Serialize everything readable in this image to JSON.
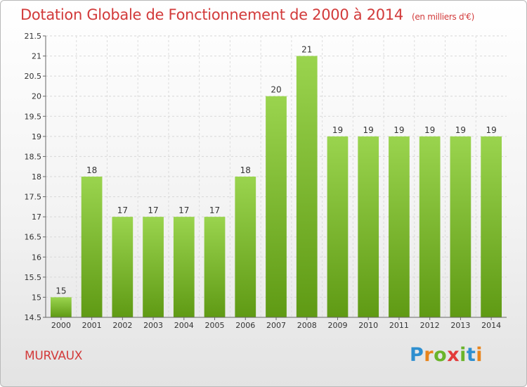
{
  "header": {
    "title": "Dotation Globale de Fonctionnement de 2000 à 2014",
    "subtitle": "(en milliers d'€)"
  },
  "footer": {
    "place": "MURVAUX",
    "logo_text": "Proxiti",
    "logo_colors": [
      "#2e8fd0",
      "#e8841c",
      "#6ab42a",
      "#e33b3b",
      "#6ab42a",
      "#2e8fd0",
      "#e8841c"
    ]
  },
  "chart_data": {
    "type": "bar",
    "categories": [
      "2000",
      "2001",
      "2002",
      "2003",
      "2004",
      "2005",
      "2006",
      "2007",
      "2008",
      "2009",
      "2010",
      "2011",
      "2012",
      "2013",
      "2014"
    ],
    "values": [
      15,
      18,
      17,
      17,
      17,
      17,
      18,
      20,
      21,
      19,
      19,
      19,
      19,
      19,
      19
    ],
    "data_labels": [
      "15",
      "18",
      "17",
      "17",
      "17",
      "17",
      "18",
      "20",
      "21",
      "19",
      "19",
      "19",
      "19",
      "19",
      "19"
    ],
    "ylim": [
      14.5,
      21.5
    ],
    "yticks": [
      14.5,
      15,
      15.5,
      16,
      16.5,
      17,
      17.5,
      18,
      18.5,
      19,
      19.5,
      20,
      20.5,
      21,
      21.5
    ],
    "ytick_labels": [
      "14.5",
      "15",
      "15.5",
      "16",
      "16.5",
      "17",
      "17.5",
      "18",
      "18.5",
      "19",
      "19.5",
      "20",
      "20.5",
      "21",
      "21.5"
    ],
    "grid": true,
    "bar_color_top": "#9ad44e",
    "bar_color_bottom": "#5f9a14"
  }
}
